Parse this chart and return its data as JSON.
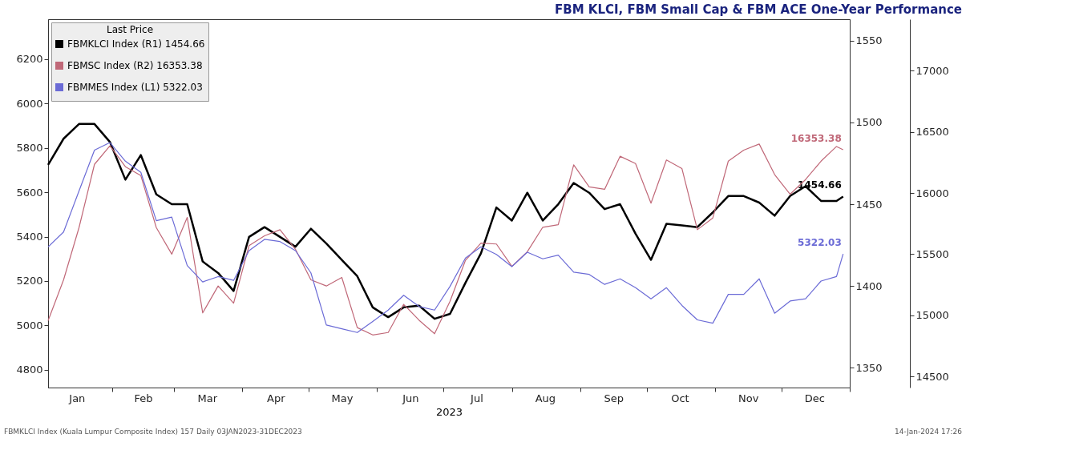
{
  "chart_data": {
    "type": "line",
    "title": "FBM KLCI, FBM Small Cap & FBM ACE One-Year Performance",
    "xlabel": "2023",
    "legend_title": "Last Price",
    "legend": "top left",
    "grid": false,
    "x": [
      "2023-01-03",
      "2023-01-10",
      "2023-01-17",
      "2023-01-24",
      "2023-01-31",
      "2023-02-07",
      "2023-02-14",
      "2023-02-21",
      "2023-02-28",
      "2023-03-07",
      "2023-03-14",
      "2023-03-21",
      "2023-03-28",
      "2023-04-04",
      "2023-04-11",
      "2023-04-18",
      "2023-04-25",
      "2023-05-02",
      "2023-05-09",
      "2023-05-16",
      "2023-05-23",
      "2023-05-30",
      "2023-06-06",
      "2023-06-13",
      "2023-06-20",
      "2023-06-27",
      "2023-07-04",
      "2023-07-11",
      "2023-07-18",
      "2023-07-25",
      "2023-08-01",
      "2023-08-08",
      "2023-08-15",
      "2023-08-22",
      "2023-08-29",
      "2023-09-05",
      "2023-09-12",
      "2023-09-19",
      "2023-09-26",
      "2023-10-03",
      "2023-10-10",
      "2023-10-17",
      "2023-10-24",
      "2023-10-31",
      "2023-11-07",
      "2023-11-14",
      "2023-11-21",
      "2023-11-28",
      "2023-12-05",
      "2023-12-12",
      "2023-12-19",
      "2023-12-26",
      "2023-12-29"
    ],
    "xlim": [
      "2023-01-03",
      "2024-01-01"
    ],
    "xticks": [
      {
        "value": "2023-01-16",
        "label": "Jan"
      },
      {
        "value": "2023-02-01",
        "label": null
      },
      {
        "value": "2023-02-15",
        "label": "Feb"
      },
      {
        "value": "2023-03-01",
        "label": null
      },
      {
        "value": "2023-03-16",
        "label": "Mar"
      },
      {
        "value": "2023-04-01",
        "label": null
      },
      {
        "value": "2023-04-16",
        "label": "Apr"
      },
      {
        "value": "2023-05-01",
        "label": null
      },
      {
        "value": "2023-05-16",
        "label": "May"
      },
      {
        "value": "2023-06-01",
        "label": null
      },
      {
        "value": "2023-06-16",
        "label": "Jun"
      },
      {
        "value": "2023-07-01",
        "label": null
      },
      {
        "value": "2023-07-16",
        "label": "Jul"
      },
      {
        "value": "2023-08-01",
        "label": null
      },
      {
        "value": "2023-08-16",
        "label": "Aug"
      },
      {
        "value": "2023-09-01",
        "label": null
      },
      {
        "value": "2023-09-16",
        "label": "Sep"
      },
      {
        "value": "2023-10-01",
        "label": null
      },
      {
        "value": "2023-10-16",
        "label": "Oct"
      },
      {
        "value": "2023-11-01",
        "label": null
      },
      {
        "value": "2023-11-16",
        "label": "Nov"
      },
      {
        "value": "2023-12-01",
        "label": null
      },
      {
        "value": "2023-12-16",
        "label": "Dec"
      },
      {
        "value": "2024-01-01",
        "label": null
      }
    ],
    "ylim": [
      4720,
      6380
    ],
    "yticks": [
      4800,
      5000,
      5200,
      5400,
      5600,
      5800,
      6000,
      6200
    ],
    "y2lim": [
      1338,
      1563
    ],
    "y2ticks": [
      1350,
      1400,
      1450,
      1500,
      1550
    ],
    "y3lim": [
      14410,
      17420
    ],
    "y3ticks": [
      14500,
      15000,
      15500,
      16000,
      16500,
      17000
    ],
    "series": [
      {
        "name": "FBMKLCI Index (R1) 1454.66",
        "axis": "y2",
        "color": "#000000",
        "values": [
          1474,
          1490,
          1499,
          1499,
          1488,
          1465,
          1480,
          1456,
          1450,
          1450,
          1415,
          1408,
          1397,
          1430,
          1436,
          1430,
          1424,
          1435,
          1426,
          1416,
          1406,
          1387,
          1381,
          1387,
          1388,
          1380,
          1383,
          1402,
          1420,
          1448,
          1440,
          1457,
          1440,
          1450,
          1463,
          1457,
          1447,
          1450,
          1432,
          1416,
          1438,
          1437,
          1436,
          1445,
          1455,
          1455,
          1451,
          1443,
          1455,
          1461,
          1452,
          1452,
          1454.66
        ],
        "value_labels": [
          null,
          null,
          null,
          null,
          null,
          null,
          null,
          null,
          null,
          null,
          null,
          null,
          null,
          null,
          null,
          null,
          null,
          null,
          null,
          null,
          null,
          null,
          null,
          null,
          null,
          null,
          null,
          null,
          null,
          null,
          null,
          null,
          null,
          null,
          null,
          null,
          null,
          null,
          null,
          null,
          null,
          null,
          null,
          null,
          null,
          null,
          null,
          null,
          null,
          null,
          null,
          null,
          "1454.66"
        ]
      },
      {
        "name": "FBMSC Index (R2) 16353.38",
        "axis": "y3",
        "color": "#c06878",
        "values": [
          14956,
          15290,
          15717,
          16234,
          16386,
          16215,
          16142,
          15717,
          15500,
          15800,
          15020,
          15240,
          15100,
          15570,
          15650,
          15700,
          15540,
          15290,
          15240,
          15310,
          14900,
          14840,
          14860,
          15090,
          14960,
          14850,
          15115,
          15450,
          15590,
          15583,
          15400,
          15520,
          15720,
          15741,
          16230,
          16050,
          16030,
          16300,
          16240,
          15917,
          16270,
          16200,
          15700,
          15796,
          16260,
          16350,
          16400,
          16150,
          15990,
          16110,
          16260,
          16380,
          16353.38
        ],
        "value_labels": [
          null,
          null,
          null,
          null,
          null,
          null,
          null,
          null,
          null,
          null,
          null,
          null,
          null,
          null,
          null,
          null,
          null,
          null,
          null,
          null,
          null,
          null,
          null,
          null,
          null,
          null,
          null,
          null,
          null,
          null,
          null,
          null,
          null,
          null,
          null,
          null,
          null,
          null,
          null,
          null,
          null,
          null,
          null,
          null,
          null,
          null,
          null,
          null,
          null,
          null,
          null,
          null,
          "16353.38"
        ]
      },
      {
        "name": "FBMMES Index (L1) 5322.03",
        "axis": "y",
        "color": "#6b6bd6",
        "values": [
          5354,
          5421,
          5606,
          5790,
          5824,
          5740,
          5690,
          5472,
          5488,
          5270,
          5196,
          5220,
          5203,
          5337,
          5388,
          5378,
          5337,
          5237,
          5002,
          4985,
          4968,
          5018,
          5069,
          5136,
          5085,
          5069,
          5176,
          5304,
          5354,
          5320,
          5265,
          5330,
          5300,
          5317,
          5240,
          5230,
          5185,
          5210,
          5170,
          5120,
          5170,
          5090,
          5025,
          5010,
          5140,
          5140,
          5210,
          5055,
          5110,
          5120,
          5200,
          5220,
          5322.03
        ],
        "value_labels": [
          null,
          null,
          null,
          null,
          null,
          null,
          null,
          null,
          null,
          null,
          null,
          null,
          null,
          null,
          null,
          null,
          null,
          null,
          null,
          null,
          null,
          null,
          null,
          null,
          null,
          null,
          null,
          null,
          null,
          null,
          null,
          null,
          null,
          null,
          null,
          null,
          null,
          null,
          null,
          null,
          null,
          null,
          null,
          null,
          null,
          null,
          null,
          null,
          null,
          null,
          null,
          null,
          "5322.03"
        ]
      }
    ],
    "annotations": [
      "FBMKLCI Index (Kuala Lumpur Composite Index) 157  Daily 03JAN2023-31DEC2023",
      "14-Jan-2024 17:26"
    ]
  }
}
